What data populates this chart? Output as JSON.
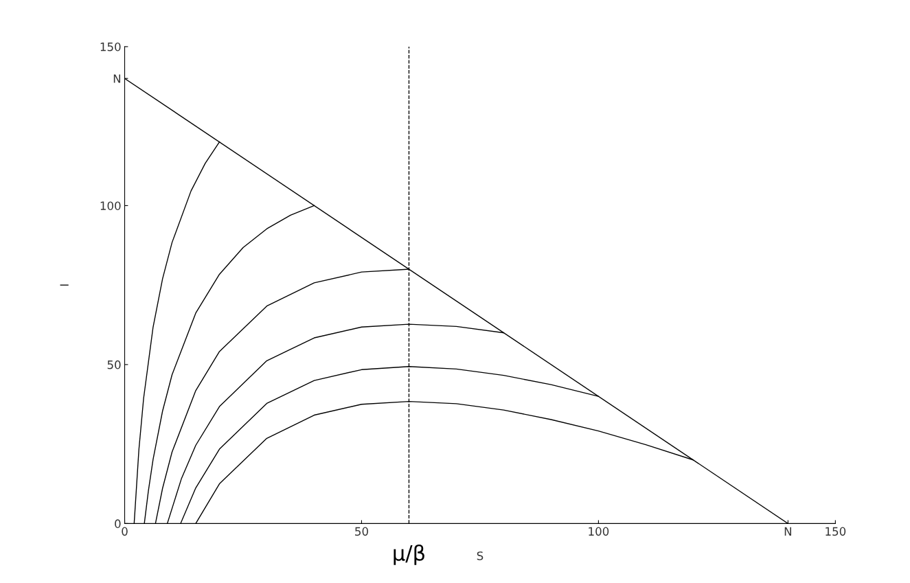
{
  "chart_data": {
    "type": "line",
    "xlabel": "S",
    "ylabel": "I",
    "xlim": [
      0,
      150
    ],
    "ylim": [
      0,
      150
    ],
    "xticks": [
      0,
      50,
      100,
      {
        "value": 140,
        "label": "N"
      },
      150
    ],
    "yticks": [
      0,
      50,
      100,
      {
        "value": 140,
        "label": "N"
      },
      150
    ],
    "grid": false,
    "legend": false,
    "marker": "none",
    "line_style": "solid",
    "ref_lines": [
      {
        "axis": "x",
        "value": 60,
        "label": null,
        "color": "#000000",
        "line_style": "dashed"
      }
    ],
    "annotations": [
      {
        "text": "μ/β",
        "x": 60,
        "y": 0
      }
    ],
    "series": [
      {
        "color": "#000000",
        "x": [
          0,
          140
        ],
        "values": [
          140,
          0
        ]
      },
      {
        "color": "#000000",
        "x": [
          2,
          3,
          4,
          6,
          8,
          10,
          14,
          17,
          20
        ],
        "values": [
          0,
          23.2,
          39.4,
          61.8,
          77,
          88.4,
          104.6,
          113.3,
          120
        ]
      },
      {
        "color": "#000000",
        "x": [
          4.15,
          5,
          6,
          8,
          10,
          15,
          20,
          25,
          30,
          35,
          40
        ],
        "values": [
          0,
          10.2,
          20.2,
          35.4,
          46.8,
          66.2,
          78.4,
          86.8,
          92.7,
          97,
          100
        ]
      },
      {
        "color": "#000000",
        "x": [
          6.5,
          8,
          10,
          15,
          20,
          30,
          40,
          50,
          60
        ],
        "values": [
          0,
          11.1,
          22.5,
          41.8,
          54.1,
          68.4,
          75.7,
          79.1,
          80
        ]
      },
      {
        "color": "#000000",
        "x": [
          9,
          12,
          15,
          20,
          30,
          40,
          50,
          60,
          70,
          80
        ],
        "values": [
          0,
          14.2,
          24.6,
          36.8,
          51.2,
          58.4,
          61.8,
          62.7,
          62,
          60
        ]
      },
      {
        "color": "#000000",
        "x": [
          11.8,
          15,
          20,
          30,
          40,
          50,
          60,
          70,
          80,
          90,
          100
        ],
        "values": [
          0,
          11.2,
          23.4,
          37.8,
          45,
          48.4,
          49.4,
          48.6,
          46.6,
          43.7,
          40
        ]
      },
      {
        "color": "#000000",
        "x": [
          15,
          20,
          30,
          40,
          50,
          60,
          70,
          80,
          90,
          100,
          110,
          120
        ],
        "values": [
          0,
          12.5,
          26.8,
          34.1,
          37.5,
          38.4,
          37.7,
          35.7,
          32.7,
          29.1,
          24.8,
          20
        ]
      }
    ]
  }
}
